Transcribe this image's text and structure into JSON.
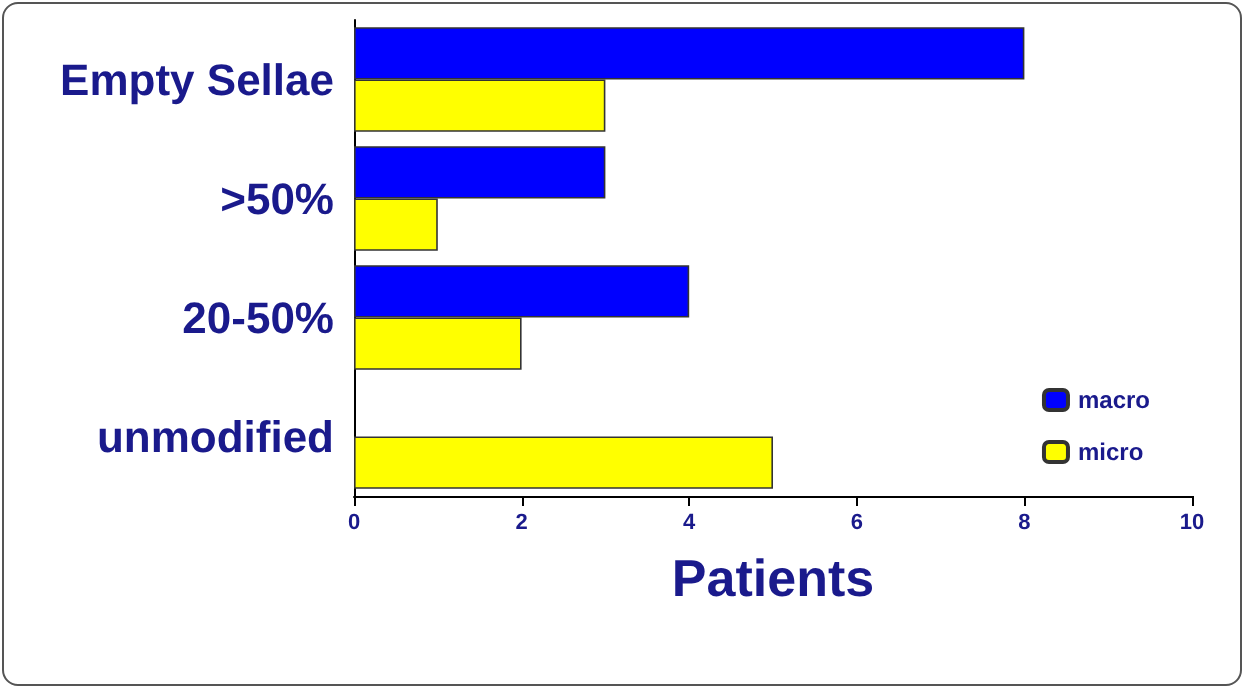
{
  "chart_data": {
    "type": "bar",
    "orientation": "horizontal",
    "xlabel": "Patients",
    "categories": [
      "Empty Sellae",
      ">50%",
      "20-50%",
      "unmodified"
    ],
    "series": [
      {
        "name": "macro",
        "color": "#0000ff",
        "values": [
          8,
          3,
          4,
          null
        ]
      },
      {
        "name": "micro",
        "color": "#ffff00",
        "values": [
          3,
          1,
          2,
          5
        ]
      }
    ],
    "xlim": [
      0,
      10
    ],
    "xticks": [
      0,
      2,
      4,
      6,
      8,
      10
    ],
    "grid": false,
    "legend": "bottom right"
  }
}
